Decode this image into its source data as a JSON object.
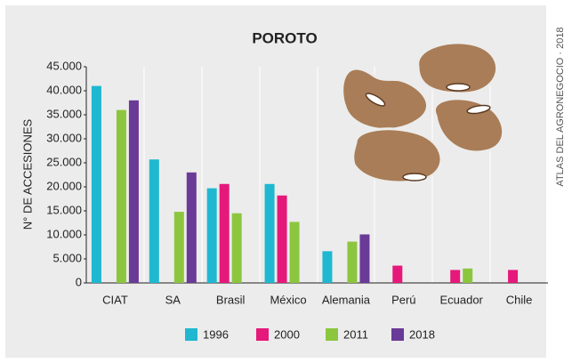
{
  "chart_data": {
    "type": "bar",
    "title": "POROTO",
    "y_label": "N° DE ACCESIONES",
    "source": "ATLAS DEL AGRONEGOCIO · 2018",
    "categories": [
      "CIAT",
      "SA",
      "Brasil",
      "México",
      "Alemania",
      "Perú",
      "Ecuador",
      "Chile"
    ],
    "series": [
      {
        "name": "1996",
        "color": "#1fb8d0",
        "values": [
          41000,
          25700,
          19700,
          20600,
          6600,
          null,
          null,
          null
        ]
      },
      {
        "name": "2000",
        "color": "#e5197a",
        "values": [
          null,
          null,
          20600,
          18200,
          null,
          3600,
          2700,
          2700
        ]
      },
      {
        "name": "2011",
        "color": "#8cc63f",
        "values": [
          36000,
          14800,
          14500,
          12700,
          8600,
          null,
          3000,
          null
        ]
      },
      {
        "name": "2018",
        "color": "#6a3a97",
        "values": [
          38000,
          23000,
          null,
          null,
          10100,
          null,
          null,
          null
        ]
      }
    ],
    "ylim": [
      0,
      45000
    ],
    "yticks": [
      0,
      {
        "value": 5000,
        "label": "5.000"
      },
      {
        "value": 10000,
        "label": "10.000"
      },
      {
        "value": 15000,
        "label": "15.000"
      },
      {
        "value": 20000,
        "label": "20.000"
      },
      {
        "value": 25000,
        "label": "25.000"
      },
      {
        "value": 30000,
        "label": "30.000"
      },
      {
        "value": 35000,
        "label": "35.000"
      },
      {
        "value": 40000,
        "label": "40.000"
      },
      {
        "value": 45000,
        "label": "45.000"
      }
    ],
    "grid": false
  }
}
